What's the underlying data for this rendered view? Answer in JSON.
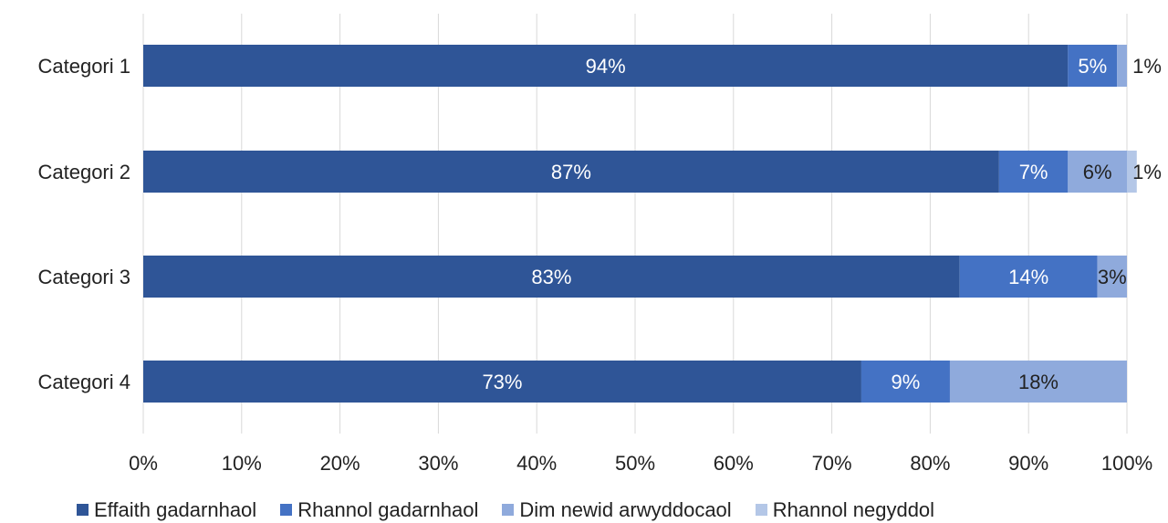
{
  "chart_data": {
    "type": "bar",
    "orientation": "horizontal",
    "stacked": true,
    "categories": [
      "Categori 1",
      "Categori 2",
      "Categori 3",
      "Categori 4"
    ],
    "series": [
      {
        "name": "Effaith gadarnhaol",
        "color": "#2f5597",
        "values": [
          94,
          87,
          83,
          73
        ],
        "labels": [
          "94%",
          "87%",
          "83%",
          "73%"
        ]
      },
      {
        "name": "Rhannol gadarnhaol",
        "color": "#4472c4",
        "values": [
          5,
          7,
          14,
          9
        ],
        "labels": [
          "5%",
          "7%",
          "14%",
          "9%"
        ]
      },
      {
        "name": "Dim newid arwyddocaol",
        "color": "#8faadc",
        "values": [
          1,
          6,
          3,
          18
        ],
        "labels": [
          "1%",
          "6%",
          "3%",
          "18%"
        ]
      },
      {
        "name": "Rhannol negyddol",
        "color": "#b4c7e7",
        "values": [
          0,
          1,
          0,
          0
        ],
        "labels": [
          "",
          "1%",
          "",
          ""
        ]
      }
    ],
    "xlim": [
      0,
      100
    ],
    "x_ticks": [
      "0%",
      "10%",
      "20%",
      "30%",
      "40%",
      "50%",
      "60%",
      "70%",
      "80%",
      "90%",
      "100%"
    ],
    "grid": "vertical",
    "legend_position": "bottom",
    "title": "",
    "xlabel": "",
    "ylabel": ""
  }
}
